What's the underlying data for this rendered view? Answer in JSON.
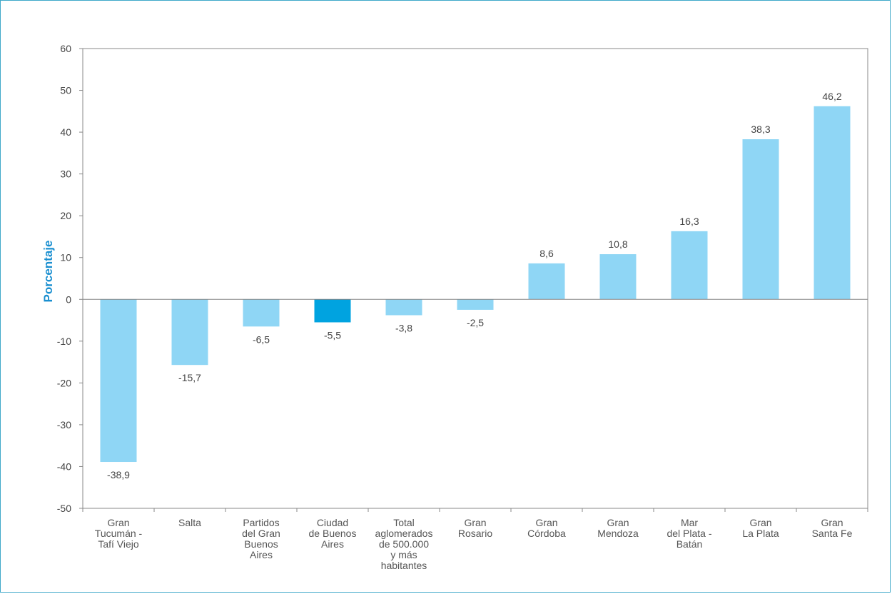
{
  "chart_data": {
    "type": "bar",
    "ylabel": "Porcentaje",
    "ylim": [
      -50,
      60
    ],
    "yticks": [
      60,
      50,
      40,
      30,
      20,
      10,
      0,
      -10,
      -20,
      -30,
      -40,
      -50
    ],
    "categories": [
      [
        "Gran",
        "Tucumán -",
        "Tafí Viejo"
      ],
      [
        "Salta"
      ],
      [
        "Partidos",
        "del Gran",
        "Buenos",
        "Aires"
      ],
      [
        "Ciudad",
        "de Buenos",
        "Aires"
      ],
      [
        "Total",
        "aglomerados",
        "de 500.000",
        "y más",
        "habitantes"
      ],
      [
        "Gran",
        "Rosario"
      ],
      [
        "Gran",
        "Córdoba"
      ],
      [
        "Gran",
        "Mendoza"
      ],
      [
        "Mar",
        "del Plata -",
        "Batán"
      ],
      [
        "Gran",
        "La Plata"
      ],
      [
        "Gran",
        "Santa Fe"
      ]
    ],
    "values": [
      -38.9,
      -15.7,
      -6.5,
      -5.5,
      -3.8,
      -2.5,
      8.6,
      10.8,
      16.3,
      38.3,
      46.2
    ],
    "value_labels": [
      "-38,9",
      "-15,7",
      "-6,5",
      "-5,5",
      "-3,8",
      "-2,5",
      "8,6",
      "10,8",
      "16,3",
      "38,3",
      "46,2"
    ],
    "highlight_index": 3,
    "colors": {
      "bar": "#8fd6f5",
      "highlight": "#00a3e0",
      "axis": "#888888",
      "border": "#3fa9c9",
      "ylabel": "#1a8fd0"
    }
  }
}
